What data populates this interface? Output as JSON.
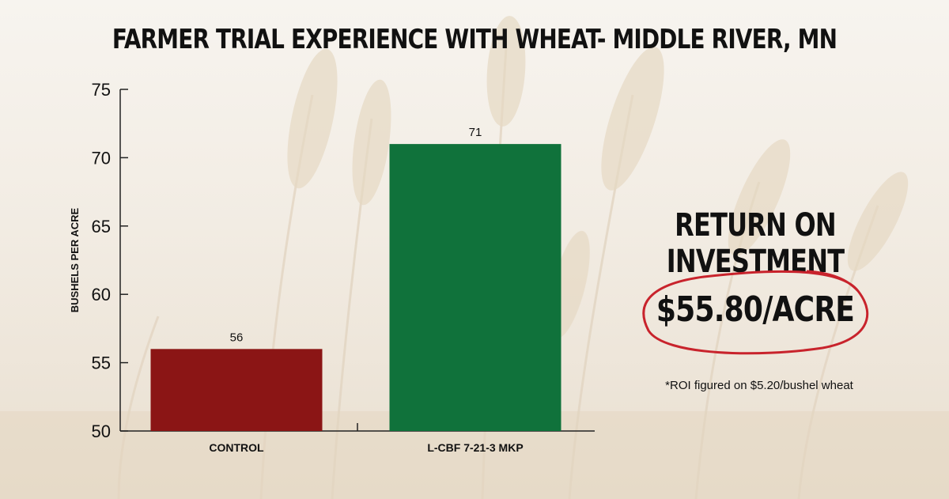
{
  "colors": {
    "control_bar": "#8b1515",
    "treatment_bar": "#10723b",
    "roi_circle": "#c8232c",
    "axis": "#222222"
  },
  "chart_data": {
    "type": "bar",
    "title": "FARMER TRIAL EXPERIENCE WITH WHEAT- MIDDLE RIVER, MN",
    "ylabel": "BUSHELS PER  ACRE",
    "xlabel": "",
    "categories": [
      "CONTROL",
      "L-CBF 7-21-3 MKP"
    ],
    "values": [
      56,
      71
    ],
    "data_labels": [
      "56",
      "71"
    ],
    "ylim": [
      50,
      75
    ],
    "yticks": [
      "50",
      "55",
      "60",
      "65",
      "70",
      "75"
    ],
    "grid": false,
    "legend": "none"
  },
  "roi": {
    "heading": "RETURN ON INVESTMENT",
    "value": "$55.80/ACRE",
    "note": "*ROI figured on $5.20/bushel wheat"
  }
}
